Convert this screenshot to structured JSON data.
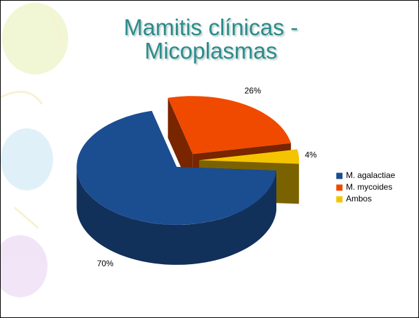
{
  "chart_data": {
    "type": "pie",
    "title": "Mamitis clínicas - Micoplasmas",
    "categories": [
      "M. agalactiae",
      "M. mycoides",
      "Ambos"
    ],
    "values": [
      70,
      26,
      4
    ],
    "value_labels": [
      "70%",
      "26%",
      "4%"
    ],
    "colors": [
      "#1b4d91",
      "#f04a00",
      "#f5c400"
    ],
    "legend": "right"
  }
}
